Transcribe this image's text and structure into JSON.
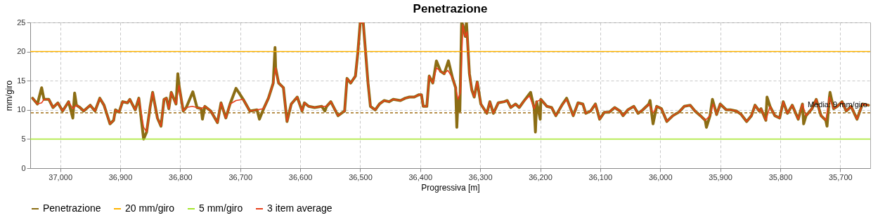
{
  "chart_data": {
    "type": "line",
    "title": "Penetrazione",
    "xlabel": "Progressiva [m]",
    "ylabel": "mm/giro",
    "xlim": [
      37050,
      35650
    ],
    "xticks": [
      {
        "value": 37000,
        "label": "37,000"
      },
      {
        "value": 36900,
        "label": "36,900"
      },
      {
        "value": 36800,
        "label": "36,800"
      },
      {
        "value": 36700,
        "label": "36,700"
      },
      {
        "value": 36600,
        "label": "36,600"
      },
      {
        "value": 36500,
        "label": "36,500"
      },
      {
        "value": 36400,
        "label": "36,400"
      },
      {
        "value": 36300,
        "label": "36,300"
      },
      {
        "value": 36200,
        "label": "36,200"
      },
      {
        "value": 36100,
        "label": "36,100"
      },
      {
        "value": 36000,
        "label": "36,000"
      },
      {
        "value": 35900,
        "label": "35,900"
      },
      {
        "value": 35800,
        "label": "35,800"
      },
      {
        "value": 35700,
        "label": "35,700"
      }
    ],
    "ylim": [
      0,
      25
    ],
    "yticks": [
      0,
      5,
      10,
      15,
      20,
      25
    ],
    "grid": true,
    "legend": "bottom",
    "series": [
      {
        "name": "Penetrazione",
        "color": "#8b6d14",
        "x": [
          37046,
          37038,
          37031,
          37027,
          37019,
          37012,
          37004,
          36996,
          36986,
          36979,
          36976,
          36973,
          36967,
          36961,
          36950,
          36942,
          36934,
          36927,
          36917,
          36911,
          36908,
          36902,
          36896,
          36888,
          36884,
          36875,
          36869,
          36861,
          36856,
          36850,
          36846,
          36838,
          36832,
          36827,
          36823,
          36819,
          36815,
          36807,
          36804,
          36802,
          36795,
          36790,
          36779,
          36772,
          36765,
          36763,
          36759,
          36749,
          36738,
          36732,
          36724,
          36717,
          36707,
          36695,
          36684,
          36672,
          36668,
          36661,
          36653,
          36645,
          36642,
          36641,
          36636,
          36628,
          36622,
          36615,
          36605,
          36597,
          36593,
          36586,
          36576,
          36564,
          36559,
          36556,
          36549,
          36537,
          36529,
          36526,
          36522,
          36516,
          36508,
          36504,
          36500,
          36495,
          36487,
          36483,
          36475,
          36468,
          36460,
          36452,
          36445,
          36433,
          36425,
          36418,
          36410,
          36402,
          36398,
          36395,
          36389,
          36385,
          36379,
          36373,
          36366,
          36360,
          36353,
          36346,
          36341,
          36339,
          36337,
          36334,
          36331,
          36329,
          36325,
          36323,
          36322,
          36318,
          36314,
          36310,
          36305,
          36299,
          36289,
          36284,
          36278,
          36270,
          36260,
          36255,
          36249,
          36241,
          36235,
          36228,
          36216,
          36210,
          36208,
          36206,
          36200,
          36199,
          36189,
          36181,
          36174,
          36164,
          36156,
          36145,
          36137,
          36129,
          36124,
          36116,
          36108,
          36101,
          36093,
          36085,
          36076,
          36067,
          36062,
          36054,
          36044,
          36037,
          36029,
          36019,
          36017,
          36012,
          36006,
          35998,
          35989,
          35979,
          35969,
          35960,
          35950,
          35942,
          35933,
          35925,
          35923,
          35917,
          35913,
          35906,
          35900,
          35890,
          35883,
          35873,
          35865,
          35856,
          35848,
          35842,
          35835,
          35832,
          35824,
          35822,
          35817,
          35809,
          35801,
          35795,
          35788,
          35780,
          35770,
          35763,
          35761,
          35757,
          35747,
          35740,
          35732,
          35724,
          35722,
          35718,
          35717,
          35711,
          35705,
          35697,
          35690,
          35682,
          35672,
          35663,
          35653
        ],
        "values": [
          12.0,
          11.0,
          13.8,
          11.8,
          11.8,
          10.4,
          11.2,
          9.8,
          11.4,
          8.6,
          12.9,
          10.8,
          10.4,
          9.8,
          10.8,
          9.8,
          12.0,
          10.8,
          7.6,
          8.2,
          10.0,
          9.6,
          11.4,
          11.2,
          11.8,
          10.0,
          12.0,
          5.0,
          6.2,
          10.6,
          13.0,
          8.6,
          7.2,
          11.8,
          12.0,
          10.2,
          13.0,
          11.0,
          16.2,
          14.2,
          9.8,
          10.4,
          13.1,
          10.4,
          10.2,
          8.4,
          10.6,
          9.8,
          7.8,
          11.2,
          8.6,
          11.0,
          13.7,
          11.8,
          9.8,
          10.0,
          8.4,
          10.2,
          12.0,
          14.6,
          20.7,
          17.2,
          14.6,
          13.8,
          8.0,
          11.0,
          12.2,
          9.8,
          11.2,
          10.6,
          10.4,
          10.6,
          9.8,
          10.6,
          11.4,
          9.0,
          9.6,
          9.8,
          15.4,
          14.6,
          15.8,
          19.8,
          25,
          25,
          14.6,
          10.6,
          10.0,
          11.0,
          11.6,
          11.4,
          11.8,
          11.6,
          12.0,
          12.2,
          12.2,
          12.6,
          12.6,
          10.6,
          10.6,
          15.8,
          14.6,
          18.4,
          16.6,
          16.2,
          18.4,
          15.4,
          13.8,
          7.0,
          11.8,
          9.8,
          25,
          24.6,
          22.6,
          25,
          23.4,
          16.2,
          13.4,
          12.2,
          14.8,
          11.0,
          9.4,
          11.4,
          9.4,
          11.2,
          11.4,
          11.6,
          10.4,
          11.0,
          10.4,
          11.4,
          13.0,
          10.2,
          6.2,
          11.4,
          8.4,
          11.8,
          10.6,
          10.4,
          9.0,
          10.8,
          12.0,
          9.0,
          11.2,
          11.0,
          9.4,
          9.8,
          11.0,
          8.4,
          9.6,
          9.6,
          10.4,
          9.8,
          9.0,
          10.0,
          10.6,
          9.4,
          10.0,
          11.0,
          11.6,
          7.6,
          10.6,
          10.2,
          8.0,
          9.0,
          9.6,
          10.6,
          10.8,
          9.8,
          9.0,
          8.2,
          7.0,
          9.0,
          11.8,
          9.2,
          11.0,
          10.0,
          10.0,
          9.8,
          9.2,
          8.0,
          9.0,
          10.8,
          9.8,
          10.2,
          8.2,
          12.2,
          10.6,
          9.0,
          8.6,
          11.4,
          9.4,
          10.8,
          8.4,
          11.0,
          7.6,
          9.0,
          10.2,
          11.8,
          9.0,
          8.2,
          7.2,
          12.2,
          13.0,
          10.2,
          10.6,
          11.4,
          9.8,
          10.6,
          8.4,
          11.0,
          10.8
        ]
      },
      {
        "name": "20 mm/giro",
        "color": "#ffb300",
        "x": [
          37050,
          35650
        ],
        "values": [
          20,
          20
        ]
      },
      {
        "name": "5 mm/giro",
        "color": "#a4e62b",
        "x": [
          37050,
          35650
        ],
        "values": [
          5,
          5
        ]
      },
      {
        "name": "3 item average",
        "color": "#e8401c",
        "x": [
          37046,
          37038,
          37031,
          37027,
          37019,
          37012,
          37004,
          36996,
          36986,
          36979,
          36973,
          36967,
          36961,
          36950,
          36942,
          36934,
          36927,
          36917,
          36911,
          36908,
          36902,
          36896,
          36888,
          36884,
          36875,
          36869,
          36861,
          36856,
          36850,
          36846,
          36838,
          36832,
          36827,
          36823,
          36819,
          36815,
          36807,
          36802,
          36795,
          36790,
          36780,
          36772,
          36765,
          36759,
          36749,
          36738,
          36732,
          36724,
          36717,
          36707,
          36695,
          36684,
          36672,
          36661,
          36653,
          36645,
          36641,
          36636,
          36628,
          36622,
          36615,
          36605,
          36597,
          36593,
          36586,
          36576,
          36564,
          36556,
          36549,
          36537,
          36529,
          36526,
          36522,
          36516,
          36508,
          36504,
          36500,
          36495,
          36487,
          36483,
          36475,
          36468,
          36460,
          36452,
          36445,
          36433,
          36425,
          36418,
          36410,
          36402,
          36398,
          36395,
          36389,
          36385,
          36379,
          36373,
          36366,
          36360,
          36354,
          36346,
          36341,
          36337,
          36333,
          36329,
          36325,
          36322,
          36318,
          36314,
          36310,
          36305,
          36299,
          36289,
          36284,
          36278,
          36270,
          36260,
          36255,
          36249,
          36241,
          36235,
          36228,
          36218,
          36210,
          36206,
          36199,
          36189,
          36181,
          36174,
          36164,
          36156,
          36145,
          36137,
          36129,
          36124,
          36116,
          36108,
          36101,
          36093,
          36085,
          36076,
          36067,
          36062,
          36054,
          36044,
          36037,
          36029,
          36019,
          36012,
          36006,
          35998,
          35989,
          35979,
          35969,
          35960,
          35950,
          35942,
          35933,
          35925,
          35917,
          35912,
          35906,
          35900,
          35890,
          35883,
          35873,
          35865,
          35856,
          35848,
          35842,
          35835,
          35832,
          35824,
          35817,
          35809,
          35801,
          35795,
          35788,
          35780,
          35770,
          35763,
          35757,
          35747,
          35740,
          35732,
          35724,
          35718,
          35711,
          35705,
          35697,
          35690,
          35682,
          35672,
          35663,
          35653
        ],
        "values": [
          12.0,
          11.0,
          11.2,
          11.8,
          11.8,
          10.4,
          11.2,
          9.8,
          11.4,
          10.2,
          10.8,
          10.4,
          9.8,
          10.8,
          9.8,
          12.0,
          10.8,
          7.6,
          8.2,
          10.0,
          9.6,
          11.4,
          11.2,
          11.8,
          10.0,
          12.0,
          7.0,
          6.2,
          10.6,
          13.0,
          8.6,
          7.2,
          11.8,
          12.0,
          10.2,
          13.0,
          11.0,
          14.2,
          9.8,
          10.4,
          10.6,
          10.4,
          10.2,
          10.6,
          9.8,
          7.8,
          11.2,
          8.6,
          11.0,
          11.6,
          11.8,
          9.8,
          10.0,
          10.2,
          12.0,
          14.6,
          17.2,
          14.6,
          13.8,
          8.0,
          11.0,
          12.2,
          9.8,
          11.2,
          10.6,
          10.4,
          10.6,
          10.6,
          11.4,
          9.0,
          9.6,
          9.8,
          15.4,
          14.6,
          15.8,
          19.8,
          25,
          25,
          14.6,
          10.6,
          10.0,
          11.0,
          11.6,
          11.4,
          11.8,
          11.6,
          12.0,
          12.2,
          12.2,
          12.6,
          12.6,
          10.6,
          10.6,
          15.8,
          14.6,
          17.2,
          16.6,
          16.2,
          16.8,
          15.4,
          13.8,
          11.8,
          13.0,
          24.6,
          22.6,
          23.4,
          16.2,
          13.4,
          12.2,
          14.8,
          11.0,
          9.4,
          11.4,
          9.4,
          11.2,
          11.4,
          11.6,
          10.4,
          11.0,
          10.4,
          11.4,
          12.4,
          10.2,
          11.4,
          11.8,
          10.6,
          10.4,
          9.0,
          10.8,
          11.8,
          9.0,
          11.2,
          11.0,
          9.4,
          9.8,
          11.0,
          8.4,
          9.6,
          9.6,
          10.4,
          9.8,
          9.0,
          10.0,
          10.6,
          9.4,
          10.0,
          11.0,
          9.4,
          10.6,
          10.2,
          8.0,
          9.0,
          9.6,
          10.6,
          10.8,
          9.8,
          9.0,
          8.2,
          9.0,
          11.0,
          9.2,
          11.0,
          10.0,
          10.0,
          9.8,
          9.2,
          8.0,
          9.0,
          10.8,
          9.8,
          10.2,
          8.2,
          10.6,
          9.0,
          8.6,
          11.4,
          9.4,
          10.8,
          8.4,
          11.0,
          9.0,
          10.2,
          11.8,
          9.0,
          8.2,
          12.2,
          10.2,
          10.6,
          11.4,
          9.8,
          10.6,
          8.4,
          11.0,
          10.8
        ]
      }
    ],
    "ref_lines": [
      {
        "axis": "y",
        "value": 9.5,
        "label": "Media: 9 mm/giro",
        "color": "#a06d14",
        "line_style": "dashed"
      }
    ]
  }
}
